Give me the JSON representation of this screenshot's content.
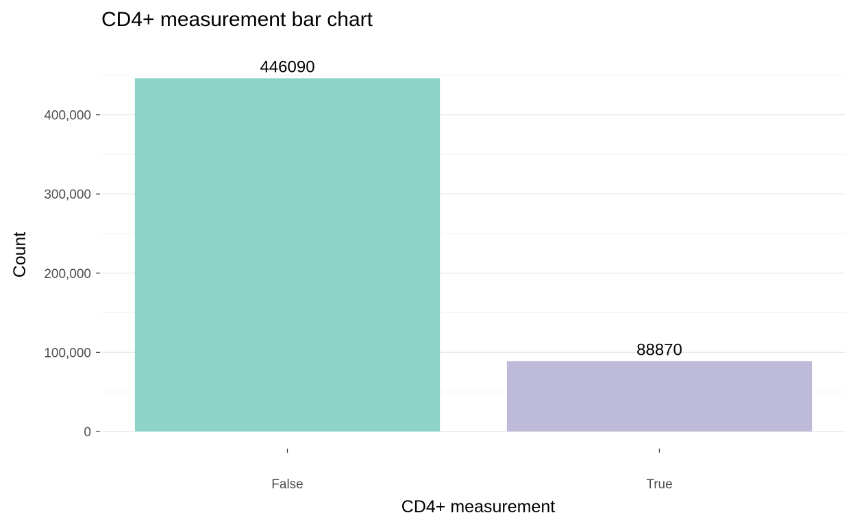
{
  "chart_data": {
    "type": "bar",
    "title": "CD4+ measurement bar chart",
    "xlabel": "CD4+ measurement",
    "ylabel": "Count",
    "categories": [
      "False",
      "True"
    ],
    "values": [
      446090,
      88870
    ],
    "data_labels": [
      "446090",
      "88870"
    ],
    "bar_colors": [
      "#8DD3C7",
      "#BEBADA"
    ],
    "ylim": [
      0,
      450000
    ],
    "y_ticks": [
      0,
      100000,
      200000,
      300000,
      400000
    ],
    "y_tick_labels": [
      "0",
      "100,000",
      "200,000",
      "300,000",
      "400,000"
    ],
    "grid": true,
    "legend": "none"
  }
}
